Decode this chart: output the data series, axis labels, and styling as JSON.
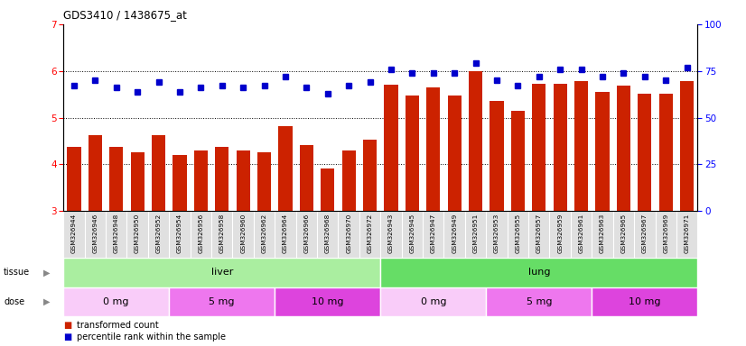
{
  "title": "GDS3410 / 1438675_at",
  "samples": [
    "GSM326944",
    "GSM326946",
    "GSM326948",
    "GSM326950",
    "GSM326952",
    "GSM326954",
    "GSM326956",
    "GSM326958",
    "GSM326960",
    "GSM326962",
    "GSM326964",
    "GSM326966",
    "GSM326968",
    "GSM326970",
    "GSM326972",
    "GSM326943",
    "GSM326945",
    "GSM326947",
    "GSM326949",
    "GSM326951",
    "GSM326953",
    "GSM326955",
    "GSM326957",
    "GSM326959",
    "GSM326961",
    "GSM326963",
    "GSM326965",
    "GSM326967",
    "GSM326969",
    "GSM326971"
  ],
  "bar_values": [
    4.38,
    4.62,
    4.38,
    4.25,
    4.62,
    4.2,
    4.3,
    4.38,
    4.3,
    4.25,
    4.82,
    4.42,
    3.92,
    4.3,
    4.52,
    5.7,
    5.48,
    5.65,
    5.48,
    6.0,
    5.35,
    5.15,
    5.72,
    5.72,
    5.78,
    5.55,
    5.68,
    5.52,
    5.52,
    5.78
  ],
  "dot_values": [
    67,
    70,
    66,
    64,
    69,
    64,
    66,
    67,
    66,
    67,
    72,
    66,
    63,
    67,
    69,
    76,
    74,
    74,
    74,
    79,
    70,
    67,
    72,
    76,
    76,
    72,
    74,
    72,
    70,
    77
  ],
  "ylim_left": [
    3,
    7
  ],
  "ylim_right": [
    0,
    100
  ],
  "yticks_left": [
    3,
    4,
    5,
    6,
    7
  ],
  "yticks_right": [
    0,
    25,
    50,
    75,
    100
  ],
  "bar_color": "#cc2200",
  "dot_color": "#0000cc",
  "plot_bg": "#ffffff",
  "xticklabel_bg": "#e0e0e0",
  "tissue_groups": [
    {
      "label": "liver",
      "start": 0,
      "end": 15,
      "color": "#aaeea0"
    },
    {
      "label": "lung",
      "start": 15,
      "end": 30,
      "color": "#66dd66"
    }
  ],
  "dose_groups": [
    {
      "label": "0 mg",
      "start": 0,
      "end": 5,
      "color": "#f9ccf9"
    },
    {
      "label": "5 mg",
      "start": 5,
      "end": 10,
      "color": "#ee77ee"
    },
    {
      "label": "10 mg",
      "start": 10,
      "end": 15,
      "color": "#dd44dd"
    },
    {
      "label": "0 mg",
      "start": 15,
      "end": 20,
      "color": "#f9ccf9"
    },
    {
      "label": "5 mg",
      "start": 20,
      "end": 25,
      "color": "#ee77ee"
    },
    {
      "label": "10 mg",
      "start": 25,
      "end": 30,
      "color": "#dd44dd"
    }
  ],
  "hgrid_lines": [
    4,
    5,
    6
  ],
  "legend": [
    {
      "color": "#cc2200",
      "label": "transformed count"
    },
    {
      "color": "#0000cc",
      "label": "percentile rank within the sample"
    }
  ]
}
